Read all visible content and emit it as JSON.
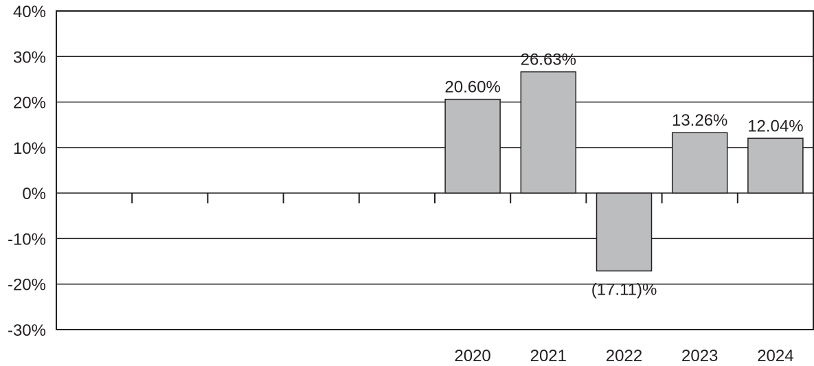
{
  "chart_data": {
    "type": "bar",
    "categories": [
      "",
      "",
      "",
      "",
      "",
      "2020",
      "2021",
      "2022",
      "2023",
      "2024"
    ],
    "values": [
      null,
      null,
      null,
      null,
      null,
      20.6,
      26.63,
      -17.11,
      13.26,
      12.04
    ],
    "data_labels": [
      "",
      "",
      "",
      "",
      "",
      "20.60%",
      "26.63%",
      "(17.11)%",
      "13.26%",
      "12.04%"
    ],
    "yticks": [
      40,
      30,
      20,
      10,
      0,
      -10,
      -20,
      -30
    ],
    "ytick_labels": [
      "40%",
      "30%",
      "20%",
      "10%",
      "0%",
      "-10%",
      "-20%",
      "-30%"
    ],
    "ylim": [
      -30,
      40
    ],
    "grid": true,
    "bar_color": "#bcbdbf",
    "line_color": "#231f20"
  }
}
